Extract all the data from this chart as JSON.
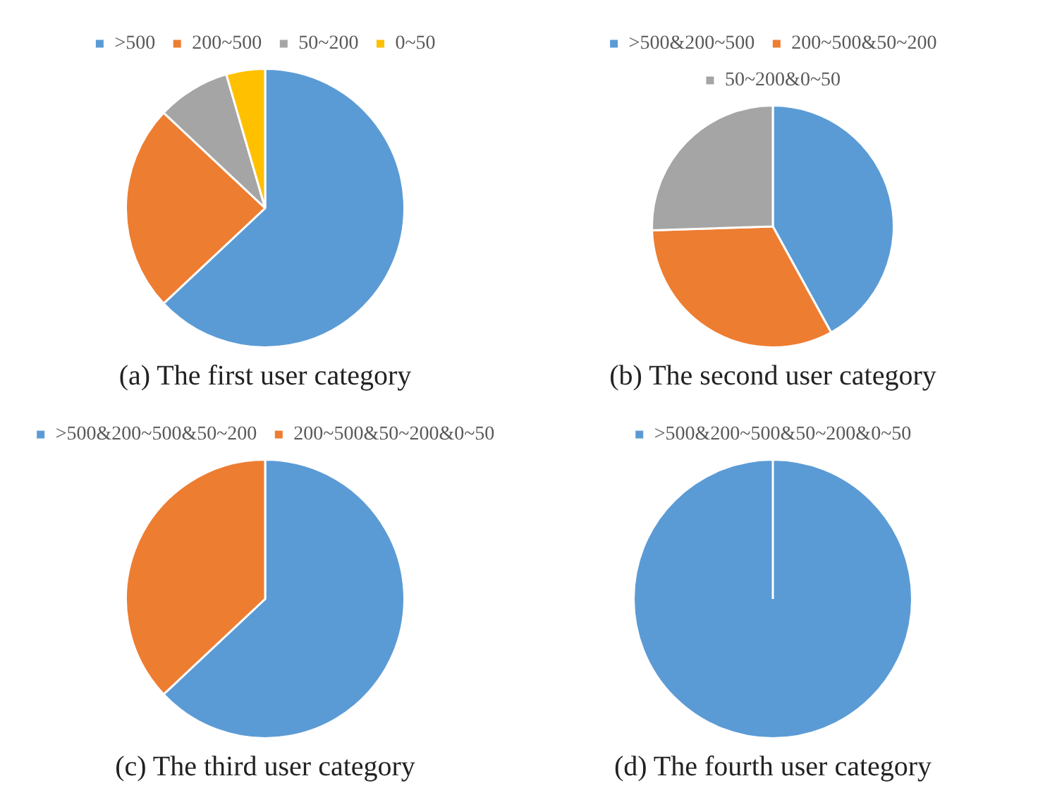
{
  "chart_data": [
    {
      "type": "pie",
      "title": "(a) The first user category",
      "categories": [
        ">500",
        "200~500",
        "50~200",
        "0~50"
      ],
      "values": [
        63,
        24,
        8.5,
        4.5
      ],
      "colors": [
        "#5b9bd5",
        "#ed7d31",
        "#a5a5a5",
        "#ffc000"
      ],
      "legend": "top"
    },
    {
      "type": "pie",
      "title": "(b) The second user category",
      "categories": [
        ">500&200~500",
        "200~500&50~200",
        "50~200&0~50"
      ],
      "values": [
        42,
        32.5,
        25.5
      ],
      "colors": [
        "#5b9bd5",
        "#ed7d31",
        "#a5a5a5"
      ],
      "legend": "top"
    },
    {
      "type": "pie",
      "title": "(c) The third user category",
      "categories": [
        ">500&200~500&50~200",
        "200~500&50~200&0~50"
      ],
      "values": [
        63,
        37
      ],
      "colors": [
        "#5b9bd5",
        "#ed7d31"
      ],
      "legend": "top"
    },
    {
      "type": "pie",
      "title": "(d) The fourth user category",
      "categories": [
        ">500&200~500&50~200&0~50"
      ],
      "values": [
        100
      ],
      "colors": [
        "#5b9bd5"
      ],
      "legend": "top"
    }
  ]
}
